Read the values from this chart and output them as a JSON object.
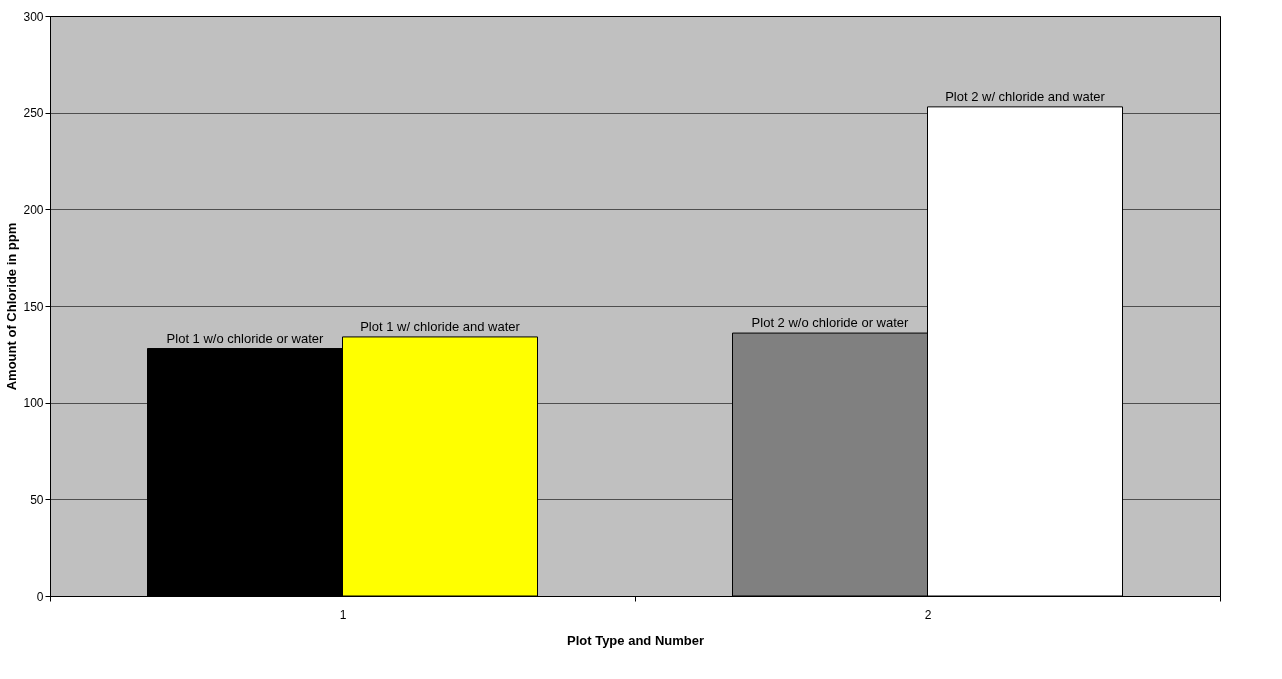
{
  "chart_data": {
    "type": "bar",
    "xlabel": "Plot Type and Number",
    "ylabel": "Amount of Chloride in ppm",
    "categories": [
      "1",
      "2"
    ],
    "series": [
      {
        "name": "Plot 1 w/o chloride or water",
        "color": "#000000",
        "values": [
          128,
          null
        ]
      },
      {
        "name": "Plot 1 w/ chloride and water",
        "color": "#ffff00",
        "values": [
          134,
          null
        ]
      },
      {
        "name": "Plot 2 w/o chloride or water",
        "color": "#808080",
        "values": [
          null,
          136
        ]
      },
      {
        "name": "Plot 2 w/ chloride and water",
        "color": "#ffffff",
        "values": [
          null,
          253
        ]
      }
    ],
    "ylim": [
      0,
      300
    ],
    "yticks": [
      0,
      50,
      100,
      150,
      200,
      250,
      300
    ],
    "grid": "y"
  }
}
